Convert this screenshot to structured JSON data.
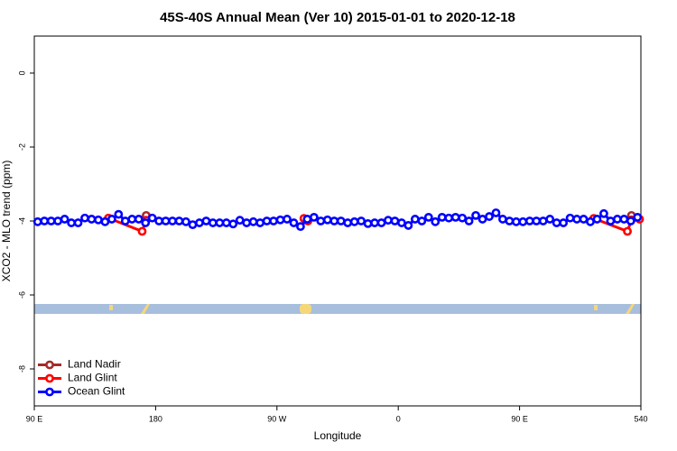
{
  "chart_data": {
    "type": "line",
    "title": "45S-40S Annual Mean (Ver 10)   2015-01-01 to 2020-12-18",
    "x_label": "Longitude",
    "y_label": "XCO2 - MLO trend (ppm)",
    "xlim": [
      90,
      540
    ],
    "ylim": [
      -9,
      1
    ],
    "xticks": [
      {
        "value": 90,
        "label": "90 E"
      },
      180,
      {
        "value": 270,
        "label": "90 W"
      },
      {
        "value": 360,
        "label": "0"
      },
      {
        "value": 450,
        "label": "90 E"
      },
      540
    ],
    "yticks": [
      0,
      -2,
      -4,
      -6,
      -8
    ],
    "legend": "bottomleft",
    "series": [
      {
        "name": "Land Nadir",
        "color": "#a52a2a",
        "x": [
          173,
          350,
          533
        ],
        "values": [
          -3.85,
          null,
          -3.85
        ]
      },
      {
        "name": "Land Glint",
        "color": "#ff0000",
        "x": [
          145,
          170,
          173,
          230,
          290,
          293,
          400,
          505,
          530,
          533,
          539
        ],
        "values": [
          -3.92,
          -4.28,
          -3.98,
          null,
          -3.93,
          -4.0,
          null,
          -3.93,
          -4.28,
          -3.97,
          -3.95
        ]
      },
      {
        "name": "Ocean Glint",
        "color": "#0000ff",
        "x": [
          92.5,
          97.5,
          102.5,
          107.5,
          112.5,
          117.5,
          122.5,
          127.5,
          132.5,
          137.5,
          142.5,
          147.5,
          152.5,
          157.5,
          162.5,
          167.5,
          172.5,
          177.5,
          182.5,
          187.5,
          192.5,
          197.5,
          202.5,
          207.5,
          212.5,
          217.5,
          222.5,
          227.5,
          232.5,
          237.5,
          242.5,
          247.5,
          252.5,
          257.5,
          262.5,
          267.5,
          272.5,
          277.5,
          282.5,
          287.5,
          292.5,
          297.5,
          302.5,
          307.5,
          312.5,
          317.5,
          322.5,
          327.5,
          332.5,
          337.5,
          342.5,
          347.5,
          352.5,
          357.5,
          362.5,
          367.5,
          372.5,
          377.5,
          382.5,
          387.5,
          392.5,
          397.5,
          402.5,
          407.5,
          412.5,
          417.5,
          422.5,
          427.5,
          432.5,
          437.5,
          442.5,
          447.5,
          452.5,
          457.5,
          462.5,
          467.5,
          472.5,
          477.5,
          482.5,
          487.5,
          492.5,
          497.5,
          502.5,
          507.5,
          512.5,
          517.5,
          522.5,
          527.5,
          532.5,
          537.5
        ],
        "values": [
          -4.02,
          -4.0,
          -4.0,
          -4.0,
          -3.95,
          -4.05,
          -4.05,
          -3.92,
          -3.95,
          -3.97,
          -4.02,
          -3.95,
          -3.82,
          -4.0,
          -3.95,
          -3.95,
          -4.05,
          -3.92,
          -4.0,
          -4.0,
          -4.0,
          -4.0,
          -4.02,
          -4.1,
          -4.05,
          -4.0,
          -4.05,
          -4.05,
          -4.05,
          -4.08,
          -3.98,
          -4.05,
          -4.02,
          -4.05,
          -4.0,
          -4.0,
          -3.97,
          -3.95,
          -4.05,
          -4.15,
          -3.95,
          -3.9,
          -4.0,
          -3.97,
          -4.0,
          -4.0,
          -4.05,
          -4.02,
          -4.0,
          -4.07,
          -4.05,
          -4.05,
          -3.98,
          -4.0,
          -4.05,
          -4.12,
          -3.95,
          -4.0,
          -3.9,
          -4.02,
          -3.9,
          -3.92,
          -3.9,
          -3.92,
          -4.0,
          -3.85,
          -3.95,
          -3.88,
          -3.78,
          -3.95,
          -4.0,
          -4.02,
          -4.02,
          -4.0,
          -4.0,
          -4.0,
          -3.95,
          -4.05,
          -4.05,
          -3.92,
          -3.95,
          -3.95,
          -4.02,
          -3.95,
          -3.8,
          -4.0,
          -3.95,
          -3.95,
          -4.0,
          -3.9
        ]
      }
    ]
  }
}
